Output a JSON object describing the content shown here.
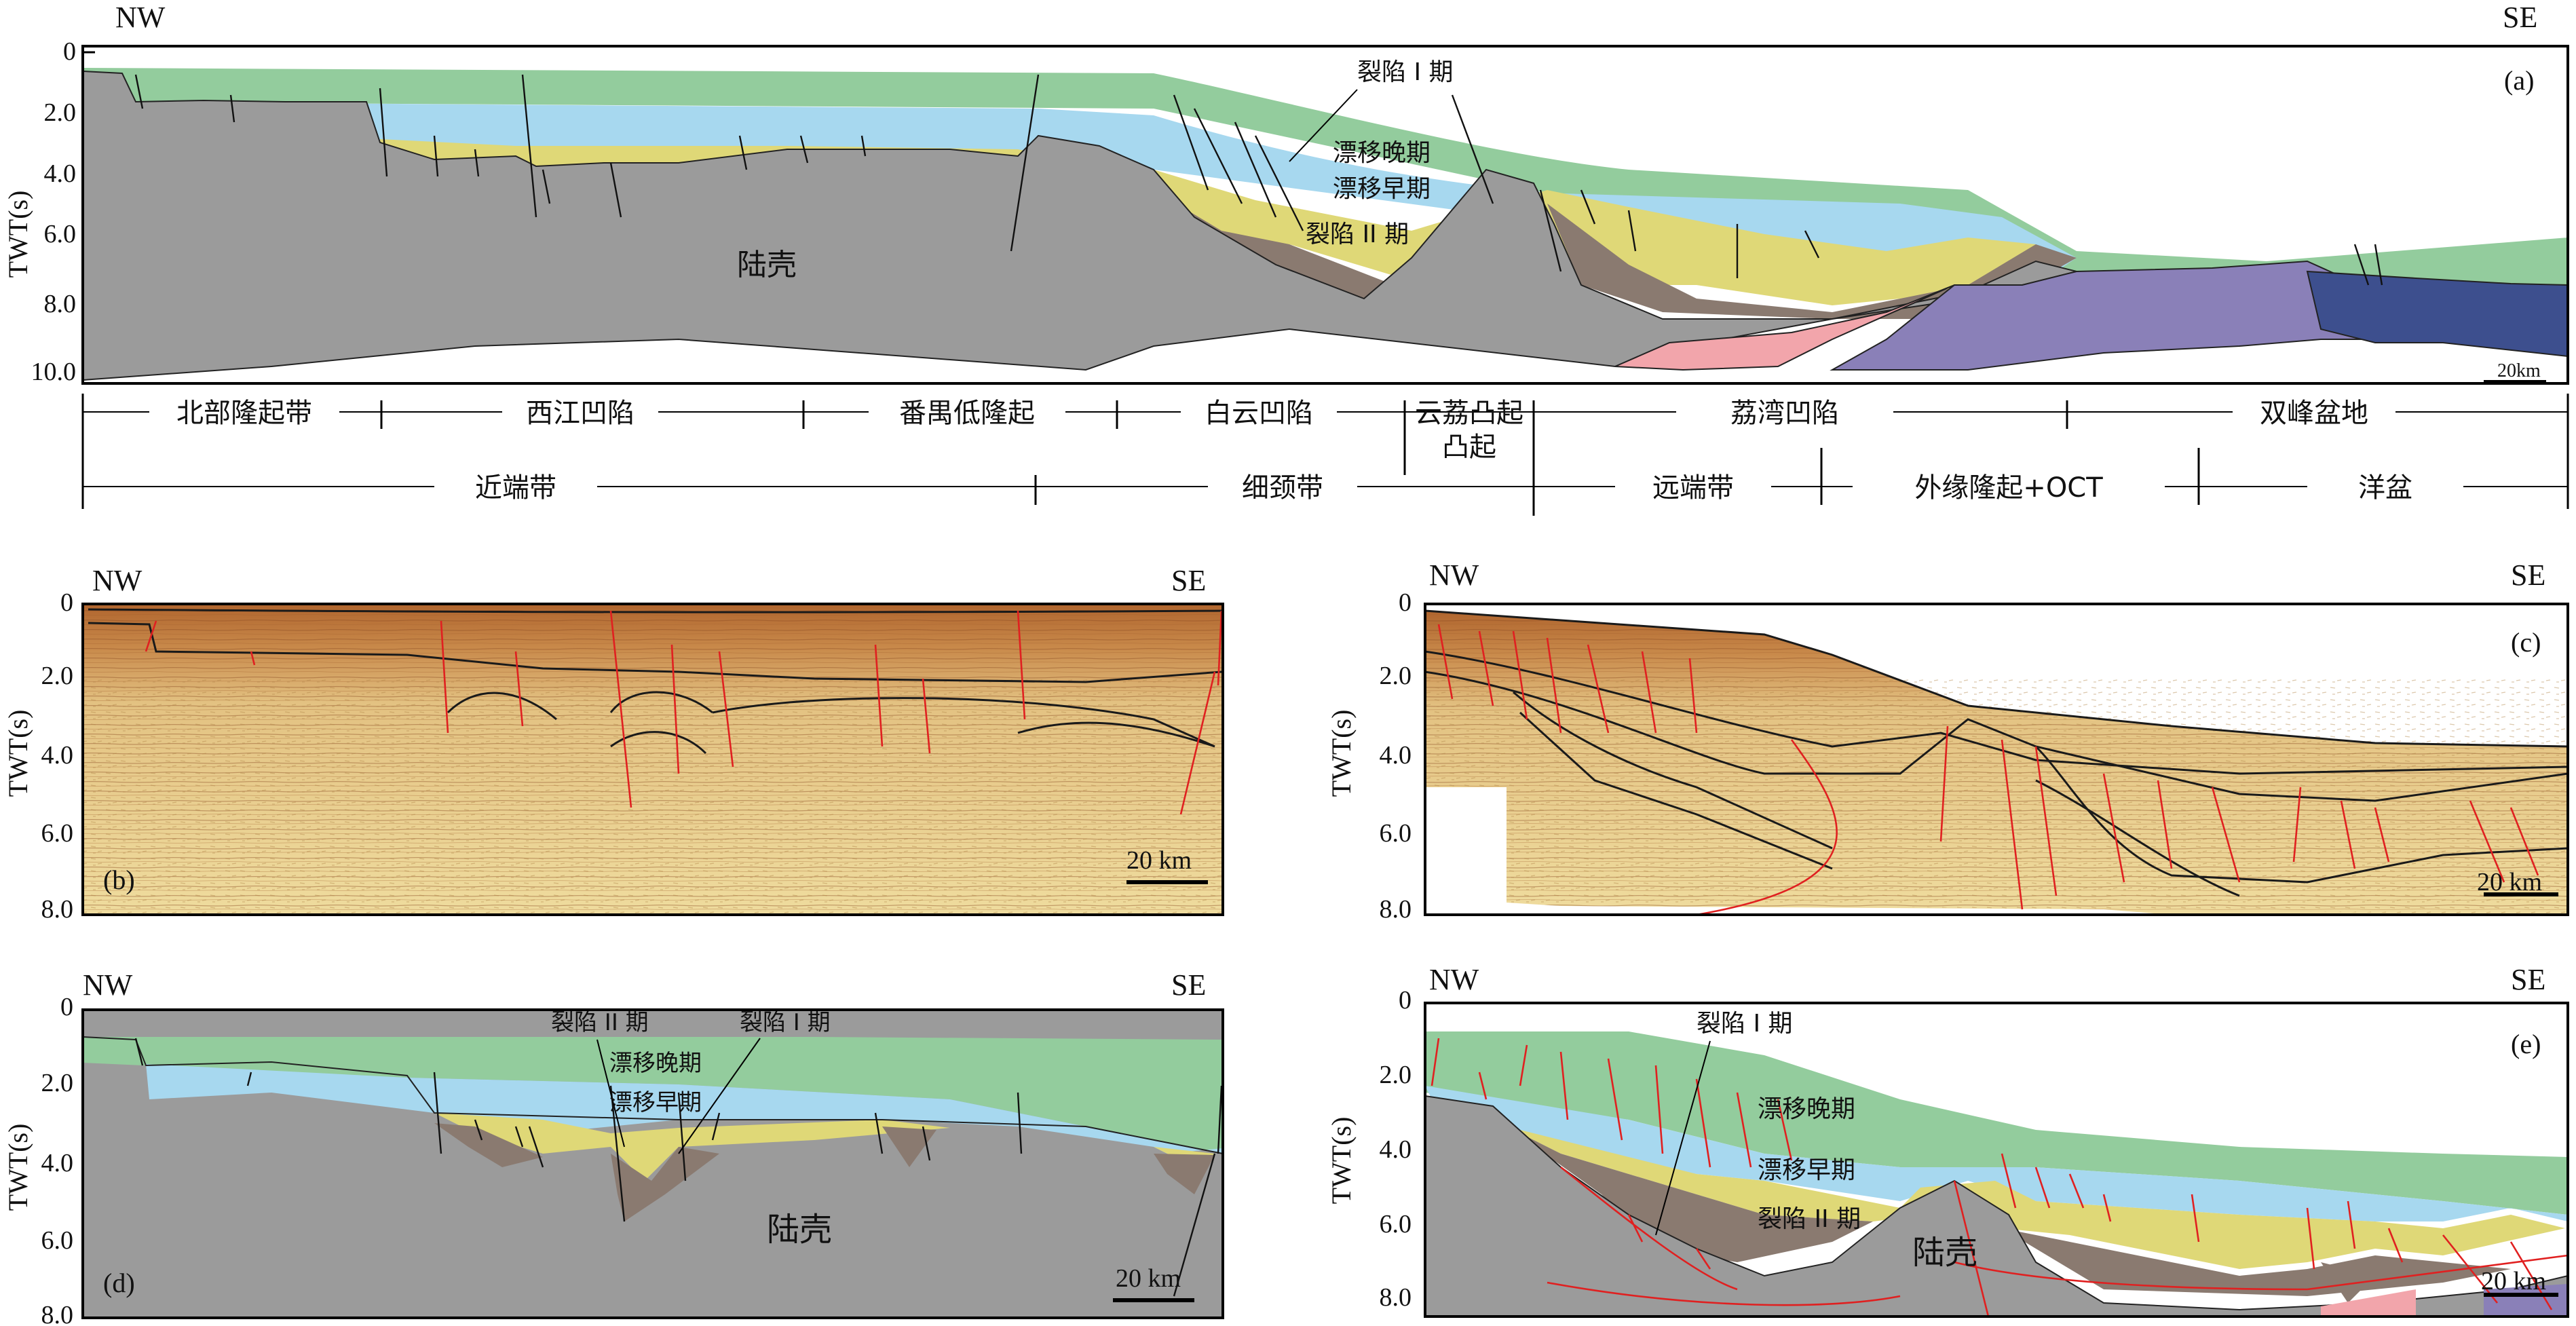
{
  "orientation": {
    "left": "NW",
    "right": "SE"
  },
  "axis_label": "TWT(s)",
  "scale_bar": "20 km",
  "scale_bar_small": "20km",
  "panel_a": {
    "label": "(a)",
    "ticks": [
      "0",
      "2.0",
      "4.0",
      "6.0",
      "8.0",
      "10.0"
    ],
    "layers": {
      "rift1": "裂陷 I 期",
      "drift_late": "漂移晚期",
      "drift_early": "漂移早期",
      "rift2": "裂陷 II 期",
      "crust": "陆壳"
    },
    "zones_row1": [
      "北部隆起带",
      "西江凹陷",
      "番禺低隆起",
      "白云凹陷",
      "云荔凸起",
      "荔湾凹陷",
      "双峰盆地"
    ],
    "zones_row2": [
      "近端带",
      "细颈带",
      "远端带",
      "外缘隆起+OCT",
      "洋盆"
    ]
  },
  "panel_b": {
    "label": "(b)",
    "ticks": [
      "0",
      "2.0",
      "4.0",
      "6.0",
      "8.0"
    ]
  },
  "panel_c": {
    "label": "(c)",
    "ticks": [
      "0",
      "2.0",
      "4.0",
      "6.0",
      "8.0"
    ]
  },
  "panel_d": {
    "label": "(d)",
    "ticks": [
      "0",
      "2.0",
      "4.0",
      "6.0",
      "8.0"
    ],
    "layers": {
      "rift2": "裂陷 II 期",
      "rift1": "裂陷 I 期",
      "drift_late": "漂移晚期",
      "drift_early": "漂移早期",
      "crust": "陆壳"
    }
  },
  "panel_e": {
    "label": "(e)",
    "ticks": [
      "0",
      "2.0",
      "4.0",
      "6.0",
      "8.0"
    ],
    "layers": {
      "rift1": "裂陷 I 期",
      "drift_late": "漂移晚期",
      "drift_early": "漂移早期",
      "rift2": "裂陷 II 期",
      "crust": "陆壳"
    }
  },
  "colors": {
    "drift_late": "#93cc9d",
    "drift_early": "#a7d8ef",
    "rift2": "#dfd877",
    "rift1": "#8a7a70",
    "crust": "#9b9b9b",
    "pink": "#f2a5ab",
    "purple": "#8a80b8",
    "navy": "#3d4f8e",
    "seismic_bg": "#e8cd86"
  }
}
